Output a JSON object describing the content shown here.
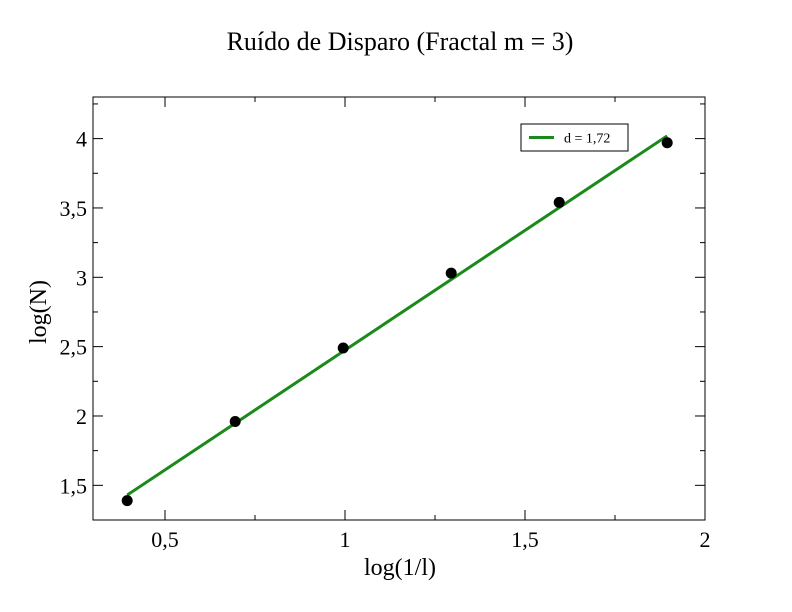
{
  "chart_data": {
    "type": "scatter",
    "title": "Ruído de Disparo (Fractal m = 3)",
    "xlabel": "log(1/l)",
    "ylabel": "log(N)",
    "xlim": [
      0.3,
      2.0
    ],
    "ylim": [
      1.25,
      4.3
    ],
    "x_ticks": [
      {
        "value": 0.5,
        "label": "0,5"
      },
      {
        "value": 1.0,
        "label": "1"
      },
      {
        "value": 1.5,
        "label": "1,5"
      },
      {
        "value": 2.0,
        "label": "2"
      }
    ],
    "y_ticks": [
      {
        "value": 1.5,
        "label": "1,5"
      },
      {
        "value": 2.0,
        "label": "2"
      },
      {
        "value": 2.5,
        "label": "2,5"
      },
      {
        "value": 3.0,
        "label": "3"
      },
      {
        "value": 3.5,
        "label": "3,5"
      },
      {
        "value": 4.0,
        "label": "4"
      }
    ],
    "x_minor_step": 0.25,
    "y_minor_step": 0.25,
    "points": [
      {
        "x": 0.395,
        "y": 1.39
      },
      {
        "x": 0.695,
        "y": 1.96
      },
      {
        "x": 0.995,
        "y": 2.49
      },
      {
        "x": 1.295,
        "y": 3.03
      },
      {
        "x": 1.595,
        "y": 3.54
      },
      {
        "x": 1.895,
        "y": 3.97
      }
    ],
    "fit_line": {
      "label": "d = 1,72",
      "color": "#1a8a1a",
      "x": [
        0.395,
        1.895
      ],
      "y": [
        1.43,
        4.02
      ]
    },
    "point_color": "#000000",
    "legend_position": "top-right",
    "grid": false
  }
}
